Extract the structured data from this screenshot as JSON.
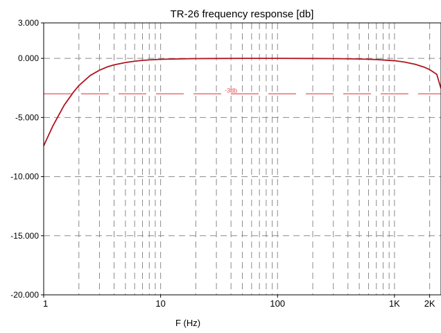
{
  "chart_data": {
    "type": "line",
    "title": "TR-26 frequency response [db]",
    "xlabel": "F (Hz)",
    "ylabel": "",
    "x_scale": "log",
    "xlim": [
      1,
      2500
    ],
    "ylim": [
      -20,
      3
    ],
    "grid": true,
    "y_ticks": [
      {
        "value": 3,
        "label": "3.000"
      },
      {
        "value": 0,
        "label": "0.000"
      },
      {
        "value": -5,
        "label": "-5.000"
      },
      {
        "value": -10,
        "label": "-10.000"
      },
      {
        "value": -15,
        "label": "-15.000"
      },
      {
        "value": -20,
        "label": "-20.000"
      }
    ],
    "x_ticks": [
      {
        "value": 1,
        "label": "1"
      },
      {
        "value": 10,
        "label": "10"
      },
      {
        "value": 100,
        "label": "100"
      },
      {
        "value": 1000,
        "label": "1K"
      },
      {
        "value": 2000,
        "label": "2K"
      }
    ],
    "series": [
      {
        "color": "#b0141e",
        "x": [
          1,
          1.2,
          1.5,
          1.8,
          2,
          2.5,
          3,
          3.5,
          4,
          5,
          6,
          7,
          8,
          10,
          15,
          20,
          30,
          50,
          100,
          200,
          300,
          500,
          700,
          1000,
          1200,
          1500,
          1800,
          2000,
          2300,
          2500
        ],
        "y": [
          -7.4,
          -5.7,
          -3.95,
          -2.85,
          -2.3,
          -1.45,
          -1.0,
          -0.72,
          -0.55,
          -0.35,
          -0.24,
          -0.17,
          -0.13,
          -0.08,
          -0.04,
          -0.02,
          -0.01,
          0.0,
          0.0,
          -0.01,
          -0.02,
          -0.05,
          -0.1,
          -0.2,
          -0.3,
          -0.5,
          -0.75,
          -0.95,
          -1.35,
          -2.55
        ]
      }
    ],
    "reference_line": {
      "y": -3,
      "label": "-3db",
      "color": "#e8545a"
    }
  }
}
